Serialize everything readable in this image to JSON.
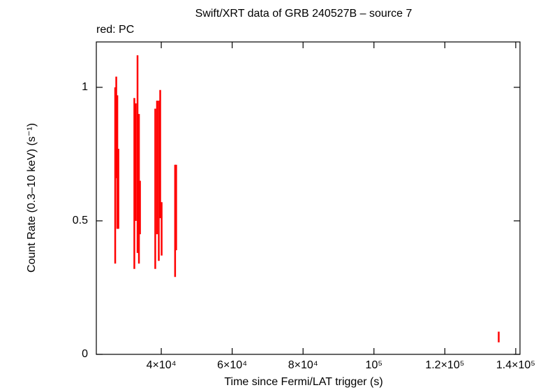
{
  "chart_data": {
    "type": "scatter",
    "title": "Swift/XRT data of GRB 240527B – source 7",
    "subtitle": "red: PC",
    "x_label": "Time since Fermi/LAT trigger (s)",
    "y_label": "Count Rate (0.3–10 keV) (s⁻¹)",
    "xlim": [
      21675,
      141200
    ],
    "ylim": [
      0,
      1.17
    ],
    "xticks": [
      {
        "value": 40000,
        "label": "4×10⁴"
      },
      {
        "value": 60000,
        "label": "6×10⁴"
      },
      {
        "value": 80000,
        "label": "8×10⁴"
      },
      {
        "value": 100000,
        "label": "10⁵"
      },
      {
        "value": 120000,
        "label": "1.2×10⁵"
      },
      {
        "value": 140000,
        "label": "1.4×10⁵"
      }
    ],
    "yticks": [
      0,
      0.5,
      1
    ],
    "series": [
      {
        "name": "PC",
        "color": "#ff0000",
        "x": [
          27000,
          27300,
          27600,
          27900,
          32400,
          32800,
          33300,
          33700,
          34000,
          38300,
          38800,
          39300,
          39700,
          40100,
          43900,
          44200,
          135200
        ],
        "values": [
          0.67,
          0.85,
          0.72,
          0.62,
          0.64,
          0.72,
          0.75,
          0.62,
          0.55,
          0.62,
          0.7,
          0.65,
          0.75,
          0.47,
          0.5,
          0.55,
          0.065
        ],
        "errors": [
          0.33,
          0.19,
          0.25,
          0.15,
          0.32,
          0.22,
          0.37,
          0.28,
          0.1,
          0.3,
          0.25,
          0.3,
          0.24,
          0.1,
          0.21,
          0.16,
          0.02
        ]
      }
    ]
  }
}
